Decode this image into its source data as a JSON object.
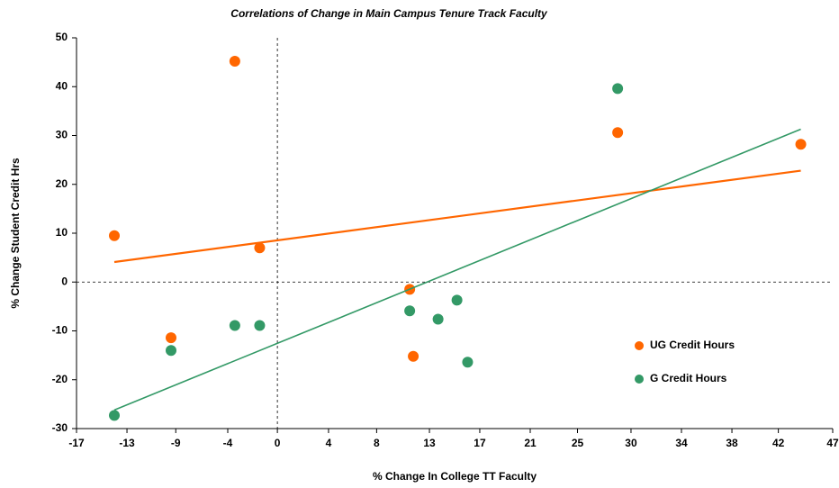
{
  "chart_data": {
    "type": "scatter",
    "title": "Correlations of Change in Main Campus Tenure Track Faculty",
    "x_label": "% Change In College TT Faculty",
    "y_label": "% Change Student Credit Hrs",
    "xlim": [
      -17,
      47
    ],
    "ylim": [
      -30,
      50
    ],
    "xticks": [
      -17,
      {
        "value": -12.73,
        "label": "-13"
      },
      {
        "value": -8.6,
        "label": "-9"
      },
      {
        "value": -4.2,
        "label": "-4"
      },
      0,
      {
        "value": 4.33,
        "label": "4"
      },
      {
        "value": 8.4,
        "label": "8"
      },
      {
        "value": 12.87,
        "label": "13"
      },
      {
        "value": 17.13,
        "label": "17"
      },
      {
        "value": 21.4,
        "label": "21"
      },
      {
        "value": 25.4,
        "label": "25"
      },
      {
        "value": 29.93,
        "label": "30"
      },
      {
        "value": 34.2,
        "label": "34"
      },
      {
        "value": 38.47,
        "label": "38"
      },
      {
        "value": 42.4,
        "label": "42"
      },
      47
    ],
    "yticks": [
      -30,
      -20,
      -10,
      0,
      10,
      20,
      30,
      40,
      50
    ],
    "zero_lines": true,
    "legend": "lower right",
    "series": [
      {
        "name": "UG Credit Hours",
        "color": "#ff6600",
        "x": [
          -13.8,
          -3.6,
          -1.5,
          -9.0,
          11.2,
          11.5,
          28.8,
          44.3
        ],
        "values": [
          9.5,
          45.2,
          7.0,
          -11.4,
          -1.5,
          -15.2,
          30.6,
          28.2
        ],
        "trend": {
          "x": [
            -13.8,
            44.3
          ],
          "values": [
            4.1,
            22.8
          ]
        }
      },
      {
        "name": "G Credit Hours",
        "color": "#339966",
        "x": [
          -13.8,
          -9.0,
          -3.6,
          -1.5,
          11.2,
          13.6,
          15.2,
          16.1,
          28.8
        ],
        "values": [
          -27.3,
          -14.0,
          -8.9,
          -8.9,
          -5.9,
          -7.6,
          -3.7,
          -16.4,
          39.6
        ],
        "trend": {
          "x": [
            -13.8,
            44.3
          ],
          "values": [
            -26.2,
            31.3
          ]
        }
      }
    ]
  }
}
